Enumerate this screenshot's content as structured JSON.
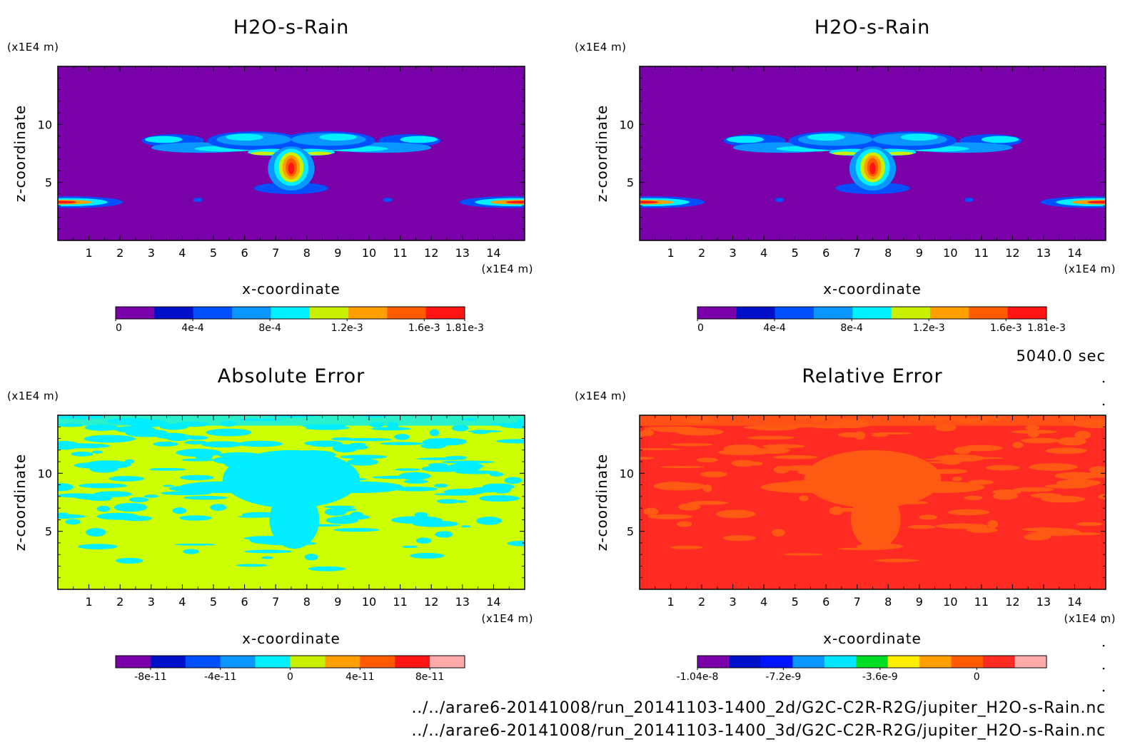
{
  "time_label": "5040.0 sec",
  "file_paths": [
    "../../arare6-20141008/run_20141103-1400_2d/G2C-C2R-R2G/jupiter_H2O-s-Rain.nc",
    "../../arare6-20141008/run_20141103-1400_3d/G2C-C2R-R2G/jupiter_H2O-s-Rain.nc"
  ],
  "chart_data": [
    {
      "type": "heatmap",
      "title": "H2O-s-Rain",
      "xlabel": "x-coordinate",
      "ylabel": "z-coordinate",
      "x_unit": "(x1E4 m)",
      "y_unit": "(x1E4 m)",
      "xlim": [
        0,
        15
      ],
      "ylim": [
        0,
        15
      ],
      "x_ticks": [
        1,
        2,
        3,
        4,
        5,
        6,
        7,
        8,
        9,
        10,
        11,
        12,
        13,
        14
      ],
      "x_tick_labels": [
        "1",
        "2",
        "3",
        "4",
        "5",
        "6",
        "7",
        "8",
        "9",
        "10",
        "11",
        "12",
        "13",
        "14"
      ],
      "y_ticks": [
        5,
        10
      ],
      "y_tick_labels": [
        "5",
        "10"
      ],
      "background_color": "#7a00aa",
      "colorbar": {
        "range": [
          0,
          0.00181
        ],
        "colors": [
          "#7a00aa",
          "#0010c8",
          "#0050ff",
          "#0a96ff",
          "#00f0ff",
          "#c8f000",
          "#ffa000",
          "#ff5a00",
          "#ff1414"
        ],
        "tick_values": [
          0,
          0.0004,
          0.0008,
          0.0012,
          0.0016,
          0.00181
        ],
        "tick_labels": [
          "0",
          "4e-4",
          "8e-4",
          "1.2e-3",
          "1.6e-3",
          "1.81e-3"
        ]
      }
    },
    {
      "type": "heatmap",
      "title": "H2O-s-Rain",
      "xlabel": "x-coordinate",
      "ylabel": "z-coordinate",
      "x_unit": "(x1E4 m)",
      "y_unit": "(x1E4 m)",
      "xlim": [
        0,
        15
      ],
      "ylim": [
        0,
        15
      ],
      "x_ticks": [
        1,
        2,
        3,
        4,
        5,
        6,
        7,
        8,
        9,
        10,
        11,
        12,
        13,
        14
      ],
      "x_tick_labels": [
        "1",
        "2",
        "3",
        "4",
        "5",
        "6",
        "7",
        "8",
        "9",
        "10",
        "11",
        "12",
        "13",
        "14"
      ],
      "y_ticks": [
        5,
        10
      ],
      "y_tick_labels": [
        "5",
        "10"
      ],
      "background_color": "#7a00aa",
      "colorbar": {
        "range": [
          0,
          0.00181
        ],
        "colors": [
          "#7a00aa",
          "#0010c8",
          "#0050ff",
          "#0a96ff",
          "#00f0ff",
          "#c8f000",
          "#ffa000",
          "#ff5a00",
          "#ff1414"
        ],
        "tick_values": [
          0,
          0.0004,
          0.0008,
          0.0012,
          0.0016,
          0.00181
        ],
        "tick_labels": [
          "0",
          "4e-4",
          "8e-4",
          "1.2e-3",
          "1.6e-3",
          "1.81e-3"
        ]
      }
    },
    {
      "type": "heatmap",
      "title": "Absolute Error",
      "xlabel": "x-coordinate",
      "ylabel": "z-coordinate",
      "x_unit": "(x1E4 m)",
      "y_unit": "(x1E4 m)",
      "xlim": [
        0,
        15
      ],
      "ylim": [
        0,
        15
      ],
      "x_ticks": [
        1,
        2,
        3,
        4,
        5,
        6,
        7,
        8,
        9,
        10,
        11,
        12,
        13,
        14
      ],
      "x_tick_labels": [
        "1",
        "2",
        "3",
        "4",
        "5",
        "6",
        "7",
        "8",
        "9",
        "10",
        "11",
        "12",
        "13",
        "14"
      ],
      "y_ticks": [
        5,
        10
      ],
      "y_tick_labels": [
        "5",
        "10"
      ],
      "background_color": "#ccff00",
      "pattern_color": "#00eeff",
      "colorbar": {
        "range": [
          -1e-10,
          1e-10
        ],
        "colors": [
          "#7a00aa",
          "#0010c8",
          "#0050ff",
          "#0a96ff",
          "#00f0ff",
          "#c8f000",
          "#ffa000",
          "#ff5a00",
          "#ff1414",
          "#ffaaaa"
        ],
        "tick_values": [
          -8e-11,
          -4e-11,
          0,
          4e-11,
          8e-11
        ],
        "tick_labels": [
          "-8e-11",
          "-4e-11",
          "0",
          "4e-11",
          "8e-11"
        ]
      }
    },
    {
      "type": "heatmap",
      "title": "Relative Error",
      "xlabel": "x-coordinate",
      "ylabel": "z-coordinate",
      "x_unit": "(x1E4 m)",
      "y_unit": "(x1E4 m)",
      "xlim": [
        0,
        15
      ],
      "ylim": [
        0,
        15
      ],
      "x_ticks": [
        1,
        2,
        3,
        4,
        5,
        6,
        7,
        8,
        9,
        10,
        11,
        12,
        13,
        14
      ],
      "x_tick_labels": [
        "1",
        "2",
        "3",
        "4",
        "5",
        "6",
        "7",
        "8",
        "9",
        "10",
        "11",
        "12",
        "13",
        "14"
      ],
      "y_ticks": [
        5,
        10
      ],
      "y_tick_labels": [
        "5",
        "10"
      ],
      "background_color": "#ff2a22",
      "pattern_color": "#ff5a14",
      "colorbar": {
        "range": [
          -1.04e-08,
          2.6e-09
        ],
        "colors": [
          "#7a00aa",
          "#0010c8",
          "#0014ff",
          "#0a96ff",
          "#00e6ff",
          "#00dd22",
          "#ffee00",
          "#ffa000",
          "#ff5a00",
          "#ff2a22",
          "#ffaaaa"
        ],
        "tick_values": [
          -1.04e-08,
          -7.2e-09,
          -3.6e-09,
          0
        ],
        "tick_labels": [
          "-1.04e-8",
          "-7.2e-9",
          "-3.6e-9",
          "0"
        ]
      }
    }
  ]
}
